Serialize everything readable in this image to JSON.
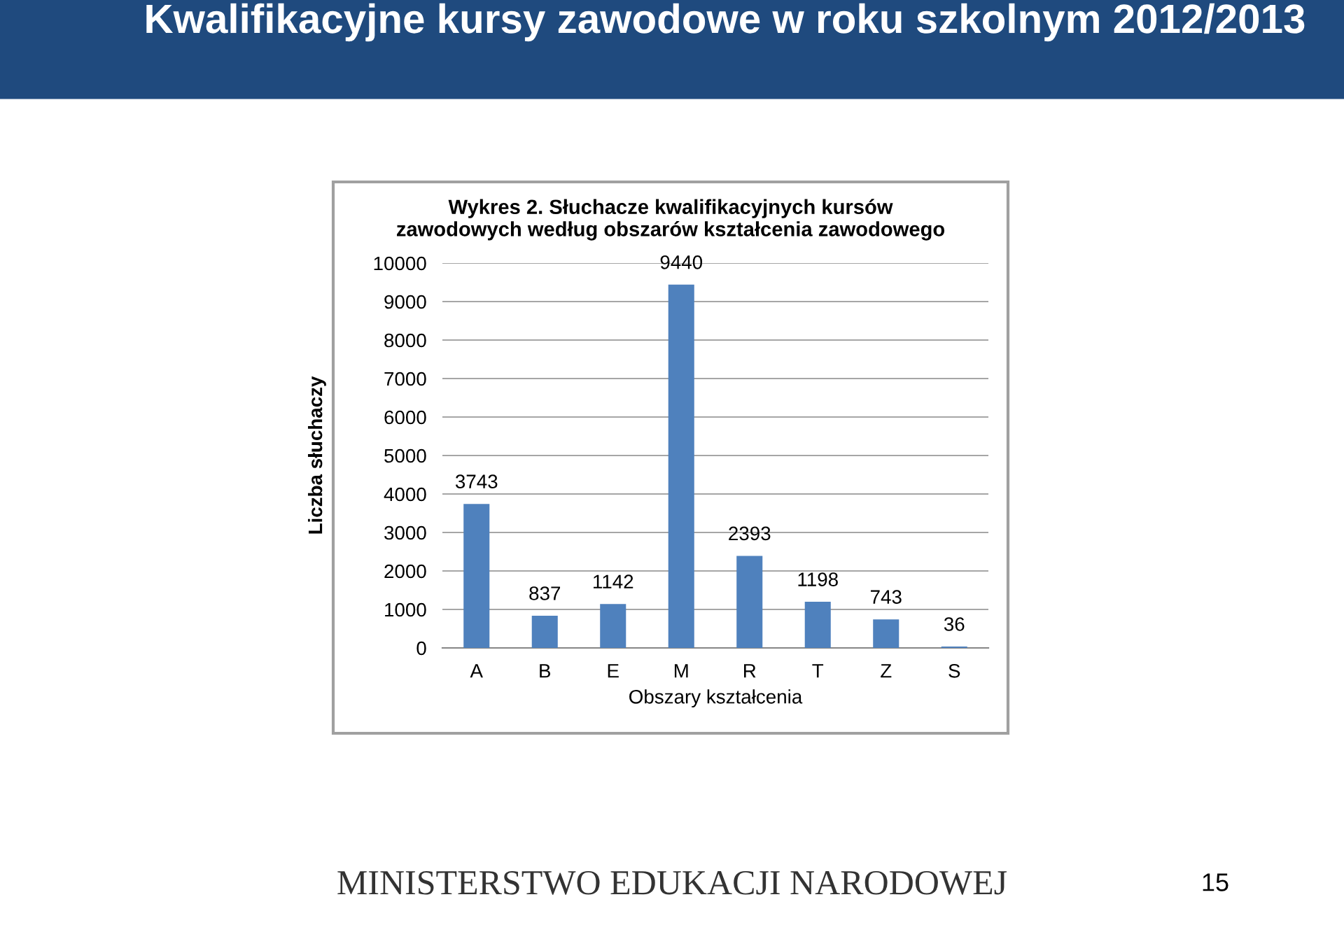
{
  "chart_data": {
    "type": "bar",
    "title": "Kwalifikacyjne kursy zawodowe w roku szkolnym 2012/2013",
    "subtitle": "Wykres 2. Słuchacze kwalifikacyjnych kursów\nzawodowych według obszarów kształcenia zawodowego",
    "xlabel": "Obszary kształcenia",
    "ylabel": "Liczba słuchaczy",
    "categories": [
      "A",
      "B",
      "E",
      "M",
      "R",
      "T",
      "Z",
      "S"
    ],
    "values": [
      3743,
      837,
      1142,
      9440,
      2393,
      1198,
      743,
      36
    ],
    "color": "#4f81bd",
    "ylim": [
      0,
      10000
    ],
    "yticks": [
      0,
      1000,
      2000,
      3000,
      4000,
      5000,
      6000,
      7000,
      8000,
      9000,
      10000
    ],
    "grid": "y",
    "data_labels": true,
    "annotations": [
      "MINISTERSTWO EDUKACJI NARODOWEJ",
      "15"
    ]
  }
}
